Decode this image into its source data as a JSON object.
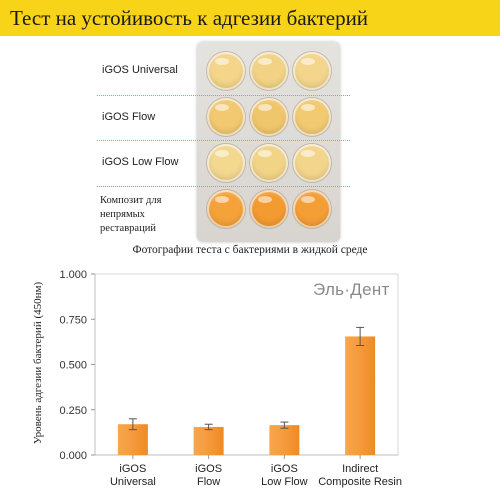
{
  "header": {
    "title": "Тест на устойивость к адгезии бактерий"
  },
  "photo": {
    "row_labels": [
      [
        "iGOS Universal"
      ],
      [
        "iGOS Flow"
      ],
      [
        "iGOS Low Flow"
      ],
      [
        "Композит для",
        "непрямых",
        "реставраций"
      ]
    ],
    "well_colors": [
      [
        "#f4d58a",
        "#f2d385",
        "#f3d68c"
      ],
      [
        "#f2c870",
        "#f0c66c",
        "#f1ca72"
      ],
      [
        "#f3d88f",
        "#f2d487",
        "#f3d68c"
      ],
      [
        "#f5a23a",
        "#f39a30",
        "#f49e36"
      ]
    ],
    "caption": "Фотографии теста с бактериями в жидкой среде"
  },
  "chart": {
    "brand": "Эль·Дент",
    "ylabel": "Уровень адгезии бактерий (450нм)"
  },
  "chart_data": {
    "type": "bar",
    "categories": [
      [
        "iGOS",
        "Universal"
      ],
      [
        "iGOS",
        "Flow"
      ],
      [
        "iGOS",
        "Low Flow"
      ],
      [
        "Indirect",
        "Composite Resin"
      ]
    ],
    "values": [
      0.17,
      0.155,
      0.165,
      0.655
    ],
    "errors": [
      0.03,
      0.015,
      0.017,
      0.05
    ],
    "yticks": [
      "0.000",
      "0.250",
      "0.500",
      "0.750",
      "1.000"
    ],
    "ylim": [
      0,
      1
    ],
    "bar_color": "#f59a3c",
    "grid": false
  }
}
